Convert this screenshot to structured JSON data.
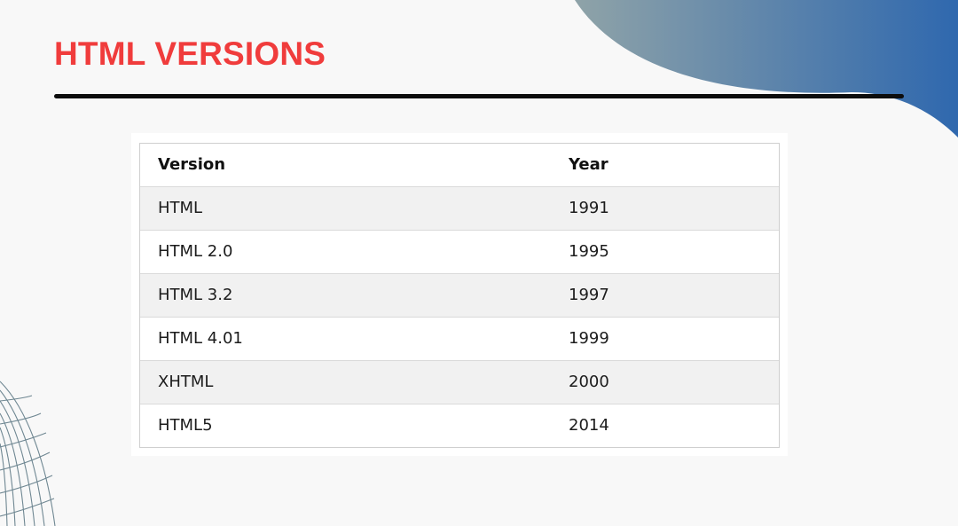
{
  "slide": {
    "title": "HTML VERSIONS",
    "title_color": "#f03c3c",
    "accent_gradient": [
      "#8fa3a8",
      "#2f68ae"
    ],
    "rule_color": "#0d0d0d"
  },
  "table": {
    "columns": [
      "Version",
      "Year"
    ],
    "rows": [
      {
        "version": "HTML",
        "year": "1991"
      },
      {
        "version": "HTML 2.0",
        "year": "1995"
      },
      {
        "version": "HTML 3.2",
        "year": "1997"
      },
      {
        "version": "HTML 4.01",
        "year": "1999"
      },
      {
        "version": "XHTML",
        "year": "2000"
      },
      {
        "version": "HTML5",
        "year": "2014"
      }
    ]
  }
}
